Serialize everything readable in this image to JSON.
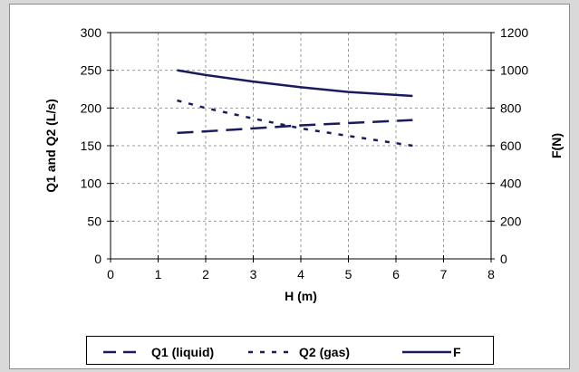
{
  "chart_data": {
    "type": "line",
    "xlabel": "H (m)",
    "ylabel": "Q1 and Q2 (L/s)",
    "y2label": "F(N)",
    "xlim": [
      0,
      8
    ],
    "ylim": [
      0,
      300
    ],
    "y2lim": [
      0,
      1200
    ],
    "x_ticks": [
      0,
      1,
      2,
      3,
      4,
      5,
      6,
      7,
      8
    ],
    "y_ticks": [
      0,
      50,
      100,
      150,
      200,
      250,
      300
    ],
    "y2_ticks": [
      0,
      200,
      400,
      600,
      800,
      1000,
      1200
    ],
    "grid": true,
    "legend_position": "bottom",
    "series": [
      {
        "name": "Q1 (liquid)",
        "axis": "left",
        "style": "long-dash",
        "color": "#1a1a5e",
        "x": [
          1.4,
          2.0,
          3.0,
          4.0,
          5.0,
          6.35
        ],
        "values": [
          167,
          169,
          173,
          177,
          180,
          184
        ]
      },
      {
        "name": "Q2 (gas)",
        "axis": "left",
        "style": "dotted",
        "color": "#1a1a5e",
        "x": [
          1.4,
          2.0,
          3.0,
          4.0,
          5.0,
          6.35
        ],
        "values": [
          210,
          200,
          186,
          173,
          163,
          150
        ]
      },
      {
        "name": "F",
        "axis": "right",
        "style": "solid",
        "color": "#1a1a5e",
        "x": [
          1.4,
          2.0,
          3.0,
          4.0,
          5.0,
          6.35
        ],
        "values": [
          1000,
          975,
          940,
          910,
          885,
          864
        ]
      }
    ]
  }
}
